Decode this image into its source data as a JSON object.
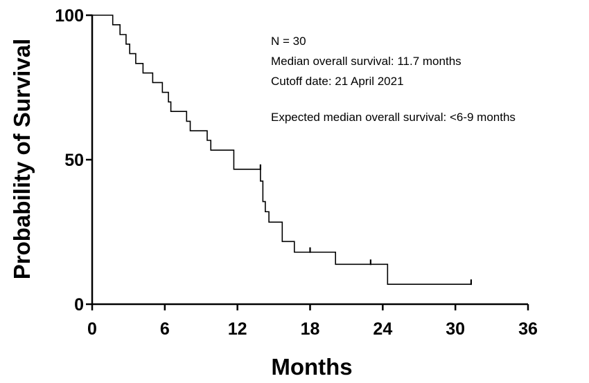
{
  "chart_data": {
    "type": "line",
    "subtype": "kaplan-meier step",
    "title": "",
    "xlabel": "Months",
    "ylabel": "Probability of Survival",
    "xlim": [
      0,
      36
    ],
    "ylim": [
      0,
      100
    ],
    "x_ticks": [
      "0",
      "6",
      "12",
      "18",
      "24",
      "30",
      "36"
    ],
    "y_ticks": [
      "0",
      "50",
      "100"
    ],
    "grid": false,
    "legend": "none",
    "annotations": [
      "N = 30",
      "Median overall survival: 11.7 months",
      "Cutoff date: 21 April 2021",
      "Expected median overall survival: <6-9 months"
    ],
    "series": [
      {
        "x": [
          0,
          1.7,
          2.3,
          2.8,
          3.1,
          3.6,
          4.2,
          5.0,
          5.8,
          6.3,
          6.5,
          7.8,
          8.1,
          9.5,
          9.8,
          11.7,
          13.9,
          14.1,
          14.3,
          14.6,
          15.7,
          16.7,
          20.1,
          24.4,
          31.3
        ],
        "y": [
          100,
          96.7,
          93.3,
          90.0,
          86.7,
          83.3,
          80.0,
          76.7,
          73.3,
          70.0,
          66.7,
          63.3,
          60.0,
          56.7,
          53.3,
          46.7,
          42.6,
          35.5,
          32.0,
          28.4,
          21.7,
          18.0,
          13.8,
          6.9,
          6.9
        ]
      }
    ],
    "censored": [
      {
        "x": 13.9,
        "y": 46.7
      },
      {
        "x": 18.0,
        "y": 18.0
      },
      {
        "x": 23.0,
        "y": 13.8
      },
      {
        "x": 31.3,
        "y": 6.9
      }
    ]
  }
}
